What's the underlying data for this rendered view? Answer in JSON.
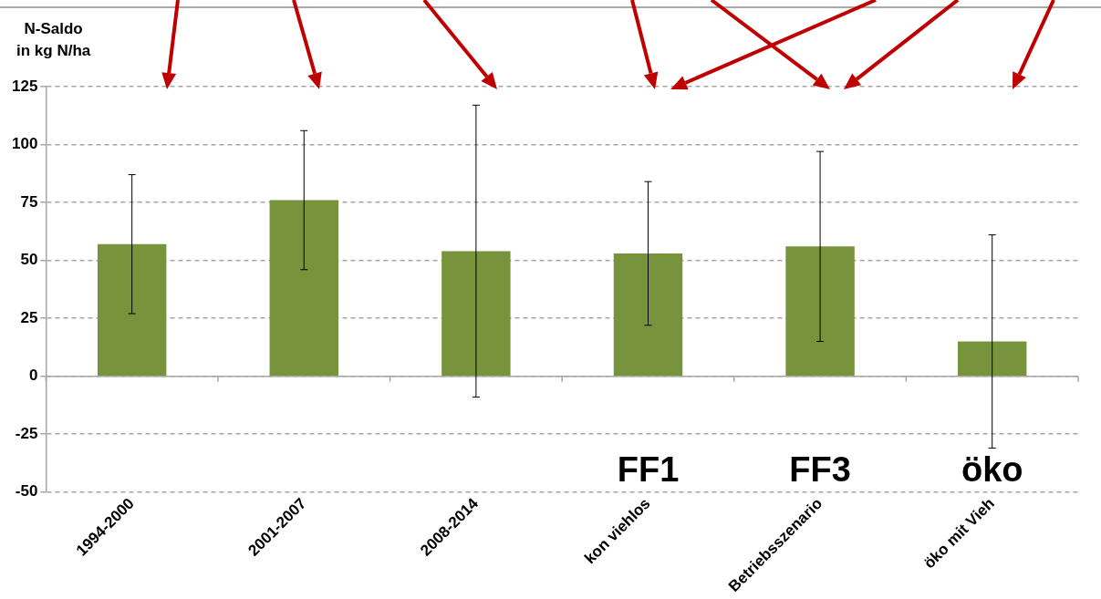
{
  "chart_data": {
    "type": "bar",
    "ylabel": "N-Saldo\nin kg N/ha",
    "categories": [
      "1994-2000",
      "2001-2007",
      "2008-2014",
      "kon viehlos",
      "Betriebsszenario",
      "öko mit Vieh"
    ],
    "values": [
      57,
      76,
      54,
      53,
      56,
      15
    ],
    "errors": [
      30,
      30,
      63,
      31,
      41,
      46
    ],
    "color": "#77933c",
    "ylim": [
      -50,
      125
    ],
    "yticks": [
      -50,
      -25,
      0,
      25,
      50,
      75,
      100,
      125
    ],
    "grid": "y",
    "legend": false,
    "annotations": [
      "FF1",
      "FF3",
      "öko"
    ]
  }
}
